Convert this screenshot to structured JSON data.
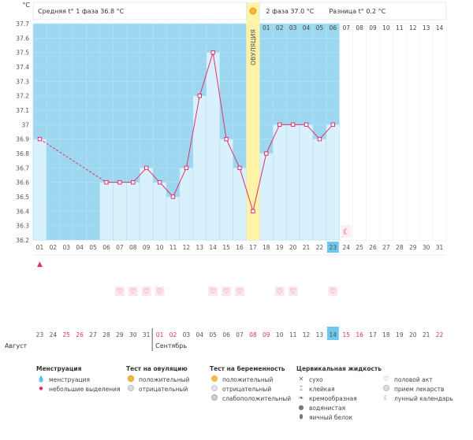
{
  "chart_data": {
    "type": "line",
    "unit": "°C",
    "ylim": [
      36.2,
      37.7
    ],
    "y_ticks": [
      "37.7",
      "37.6",
      "37.5",
      "37.4",
      "37.3",
      "37.2",
      "37.1",
      "37",
      "36.9",
      "36.8",
      "36.7",
      "36.6",
      "36.5",
      "36.4",
      "36.3",
      "36.2"
    ],
    "header": {
      "phase1": "Средняя t° 1 фаза 36.8 °C",
      "phase2": "2 фаза 37.0 °C",
      "diff": "Разница t° 0.2 °C"
    },
    "ovulation_label": "ОВУЛЯЦИЯ",
    "ovulation_day_index": 16,
    "cycle_days": [
      "01",
      "02",
      "03",
      "04",
      "05",
      "06",
      "07",
      "08",
      "09",
      "10",
      "11",
      "12",
      "13",
      "14",
      "15",
      "16",
      "17",
      "18",
      "19",
      "20",
      "21",
      "22",
      "23",
      "24",
      "25",
      "26",
      "27",
      "28",
      "29",
      "30",
      "31"
    ],
    "current_day_index": 22,
    "phase2_days": [
      "01",
      "02",
      "03",
      "04",
      "05",
      "06",
      "07",
      "08",
      "09",
      "10",
      "11",
      "12",
      "13",
      "14"
    ],
    "temperatures": [
      36.9,
      null,
      null,
      null,
      null,
      36.6,
      36.6,
      36.6,
      36.7,
      36.6,
      36.5,
      36.7,
      37.2,
      37.5,
      36.9,
      36.7,
      36.4,
      36.8,
      37.0,
      37.0,
      37.0,
      36.9,
      37.0
    ],
    "dates": [
      "23",
      "24",
      "25",
      "26",
      "27",
      "28",
      "29",
      "30",
      "31",
      "01",
      "02",
      "03",
      "04",
      "05",
      "06",
      "07",
      "08",
      "09",
      "10",
      "11",
      "12",
      "13",
      "14",
      "15",
      "16",
      "17",
      "18",
      "19",
      "20",
      "21",
      "22"
    ],
    "date_colors": [
      "#555",
      "#555",
      "#d6336c",
      "#d6336c",
      "#555",
      "#555",
      "#555",
      "#555",
      "#555",
      "#d6336c",
      "#d6336c",
      "#555",
      "#555",
      "#555",
      "#555",
      "#555",
      "#d6336c",
      "#d6336c",
      "#555",
      "#555",
      "#555",
      "#555",
      "#555",
      "#d6336c",
      "#d6336c",
      "#555",
      "#555",
      "#555",
      "#555",
      "#555",
      "#d6336c"
    ],
    "today_date_index": 22,
    "month_august": "Август",
    "month_september": "Сентябрь",
    "menstruation_days": [
      0
    ],
    "intercourse_days": [
      6,
      7,
      8,
      9,
      13,
      14,
      15,
      18,
      19,
      22
    ],
    "moon_day_index": 23,
    "colors": {
      "plot_bg": "#9dd8f0",
      "bar": "#d9f1fc",
      "line": "#e0306e",
      "ovulation": "#fff3a8",
      "highlight": "#6ec8ee"
    }
  },
  "legend": {
    "menstruation": {
      "title": "Менструация",
      "items": [
        "менструация",
        "небольшие выделения"
      ]
    },
    "ovulation_test": {
      "title": "Тест на овуляцию",
      "items": [
        "положительный",
        "отрицательный"
      ]
    },
    "pregnancy_test": {
      "title": "Тест на беременность",
      "items": [
        "положительный",
        "отрицательный",
        "слабоположительный"
      ]
    },
    "cervical": {
      "title": "Цервикальная жидкость",
      "items": [
        "сухо",
        "клейкая",
        "кремообразная",
        "водянистая",
        "яичный белок"
      ]
    },
    "other": {
      "items": [
        "половой акт",
        "прием лекарств",
        "лунный календарь"
      ]
    }
  }
}
